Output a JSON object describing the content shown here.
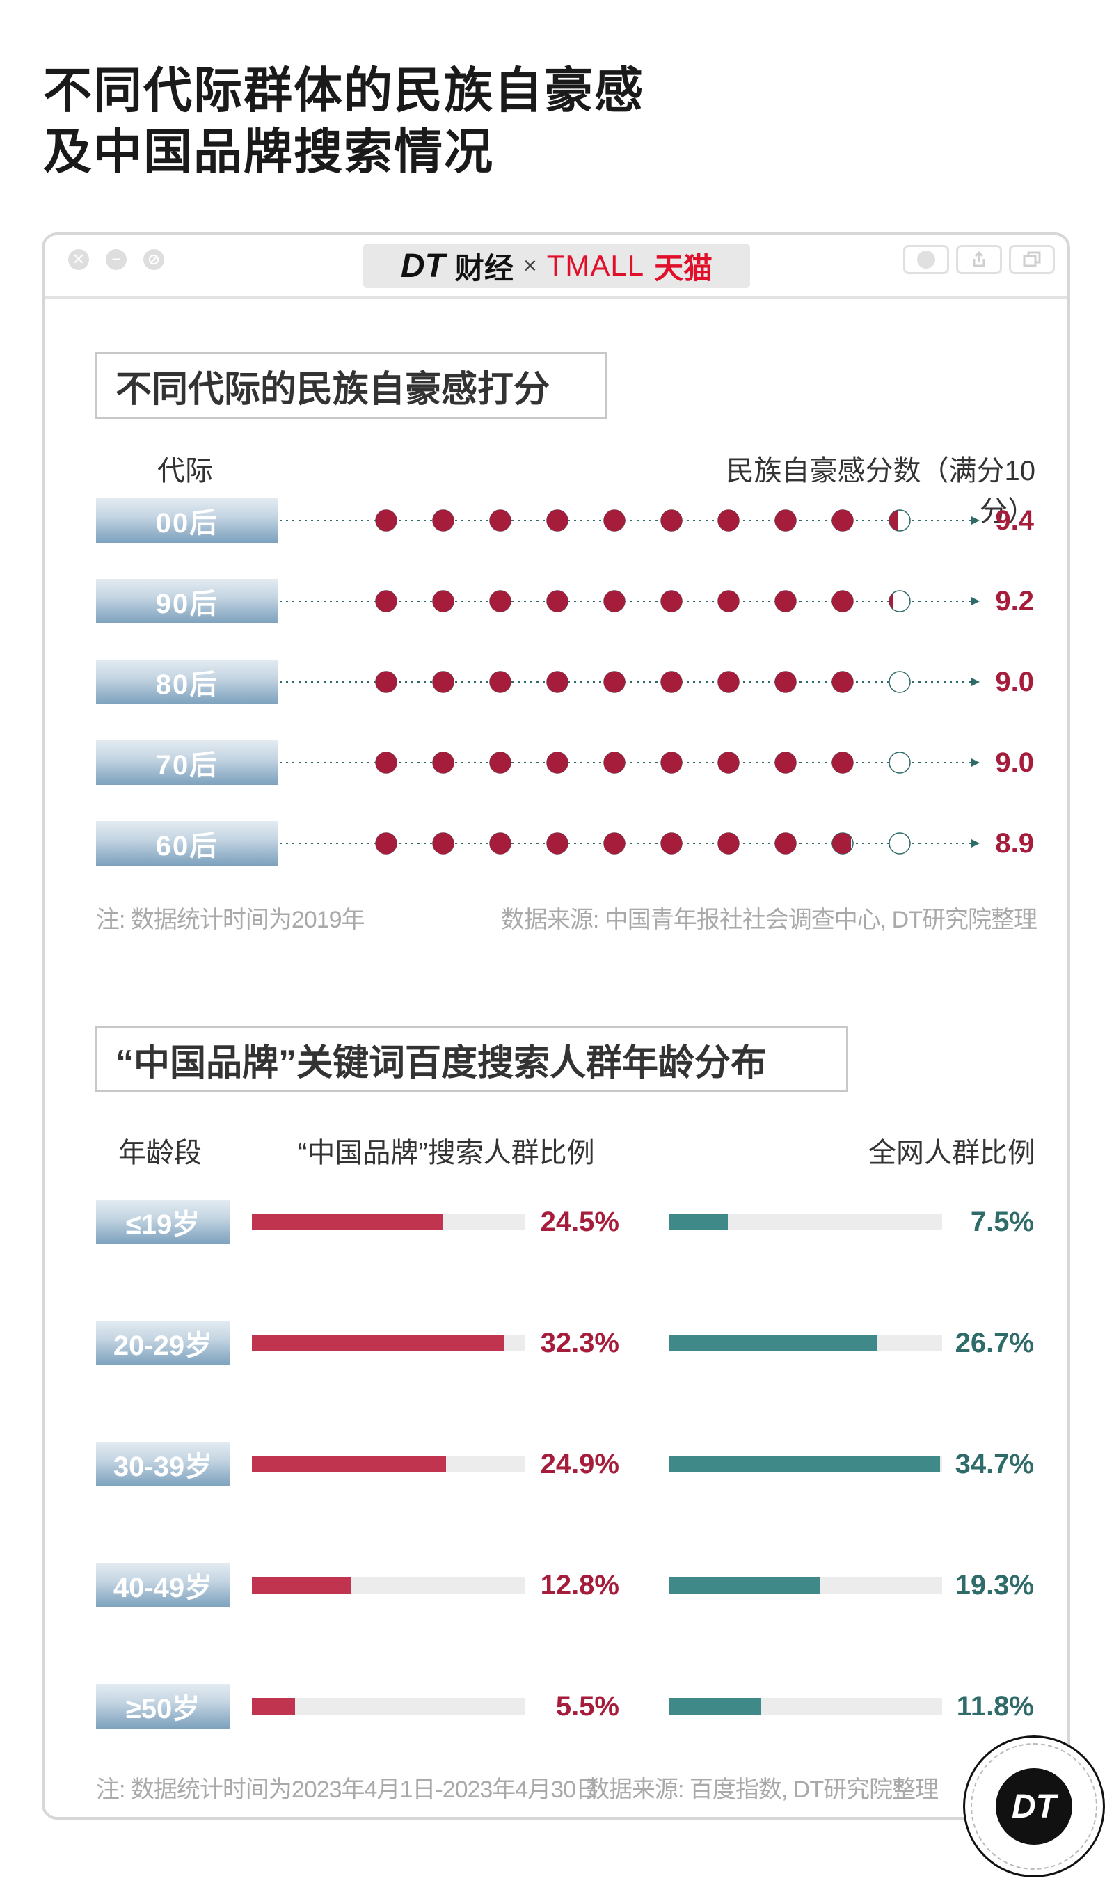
{
  "page": {
    "title_line1": "不同代际群体的民族自豪感",
    "title_line2": "及中国品牌搜索情况"
  },
  "window": {
    "brand_left": "DT",
    "brand_left_cn": "财经",
    "brand_sep": "×",
    "brand_right": "TMALL",
    "brand_right_cn": "天猫",
    "close_icon": "✕",
    "minimize_icon": "−",
    "block_icon": "⊘"
  },
  "section1": {
    "heading": "不同代际的民族自豪感打分",
    "col_left": "代际",
    "col_right": "民族自豪感分数（满分10分）",
    "note": "注: 数据统计时间为2019年",
    "source": "数据来源: 中国青年报社社会调查中心, DT研究院整理"
  },
  "section2": {
    "heading": "“中国品牌”关键词百度搜索人群年龄分布",
    "col_age": "年龄段",
    "col_search": "“中国品牌”搜索人群比例",
    "col_all": "全网人群比例",
    "note": "注: 数据统计时间为2023年4月1日-2023年4月30日",
    "source": "数据来源: 百度指数, DT研究院整理"
  },
  "colors": {
    "red": "#a61d3c",
    "red_bar": "#c0344f",
    "green": "#2e6b69",
    "green_bar": "#3f8a88",
    "track": "#ececec"
  },
  "chart_data": [
    {
      "type": "dot",
      "categories": [
        "00后",
        "90后",
        "80后",
        "70后",
        "60后"
      ],
      "values": [
        9.4,
        9.2,
        9.0,
        9.0,
        8.9
      ],
      "value_labels": [
        "9.4",
        "9.2",
        "9.0",
        "9.0",
        "8.9"
      ],
      "title": "不同代际的民族自豪感打分",
      "xlabel": "代际",
      "ylabel": "民族自豪感分数（满分10分）",
      "xlim": [
        0,
        10
      ]
    },
    {
      "type": "bar",
      "categories": [
        "≤19岁",
        "20-29岁",
        "30-39岁",
        "40-49岁",
        "≥50岁"
      ],
      "series": [
        {
          "name": "“中国品牌”搜索人群比例",
          "values": [
            24.5,
            32.3,
            24.9,
            12.8,
            5.5
          ],
          "labels": [
            "24.5%",
            "32.3%",
            "24.9%",
            "12.8%",
            "5.5%"
          ]
        },
        {
          "name": "全网人群比例",
          "values": [
            7.5,
            26.7,
            34.7,
            19.3,
            11.8
          ],
          "labels": [
            "7.5%",
            "26.7%",
            "34.7%",
            "19.3%",
            "11.8%"
          ]
        }
      ],
      "title": "“中国品牌”关键词百度搜索人群年龄分布",
      "xlabel": "年龄段"
    }
  ],
  "badge": {
    "text": "DT"
  }
}
